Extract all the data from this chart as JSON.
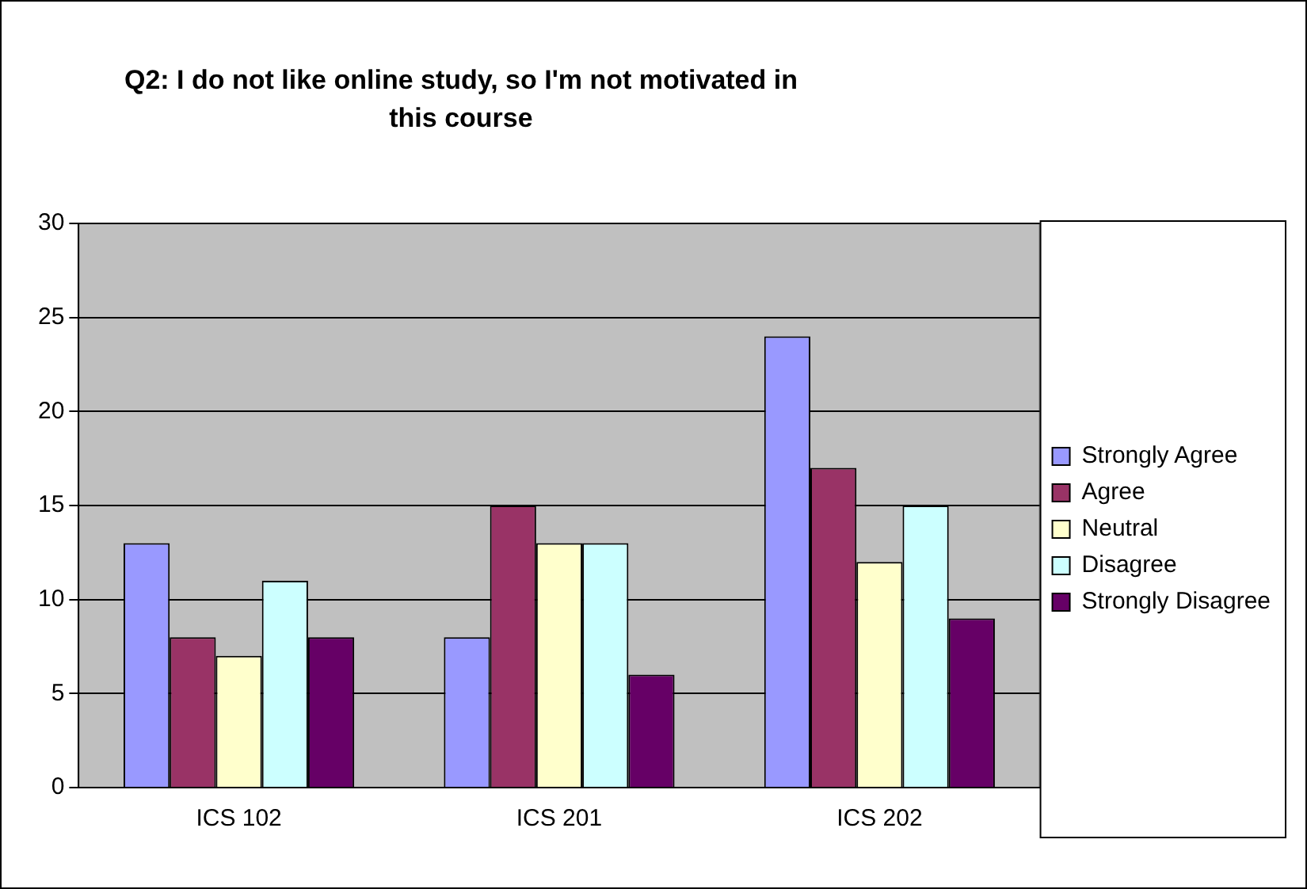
{
  "chart_data": {
    "type": "bar",
    "title": "Q2: I do not like online study, so I'm not motivated in this course",
    "categories": [
      "ICS 102",
      "ICS 201",
      "ICS 202"
    ],
    "series": [
      {
        "name": "Strongly Agree",
        "color": "#9999ff",
        "values": [
          13,
          8,
          24
        ]
      },
      {
        "name": "Agree",
        "color": "#993366",
        "values": [
          8,
          15,
          17
        ]
      },
      {
        "name": "Neutral",
        "color": "#ffffcc",
        "values": [
          7,
          13,
          12
        ]
      },
      {
        "name": "Disagree",
        "color": "#ccffff",
        "values": [
          11,
          13,
          15
        ]
      },
      {
        "name": "Strongly Disagree",
        "color": "#660066",
        "values": [
          8,
          6,
          9
        ]
      }
    ],
    "ylim": [
      0,
      30
    ],
    "yticks": [
      0,
      5,
      10,
      15,
      20,
      25,
      30
    ],
    "grid": "y",
    "legend": "right"
  }
}
